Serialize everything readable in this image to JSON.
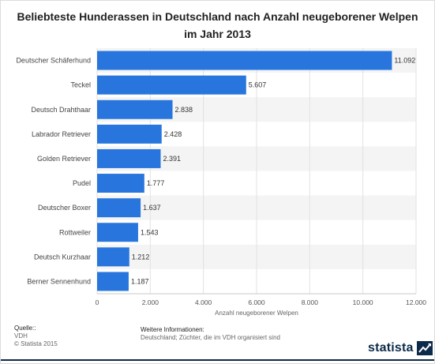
{
  "title": "Beliebteste Hunderassen in Deutschland nach Anzahl neugeborener Welpen im Jahr 2013",
  "chart_data": {
    "type": "bar",
    "orientation": "horizontal",
    "title": "Beliebteste Hunderassen in Deutschland nach Anzahl neugeborener Welpen im Jahr 2013",
    "categories": [
      "Deutscher Schäferhund",
      "Teckel",
      "Deutsch Drahthaar",
      "Labrador Retriever",
      "Golden Retriever",
      "Pudel",
      "Deutscher Boxer",
      "Rottweiler",
      "Deutsch Kurzhaar",
      "Berner Sennenhund"
    ],
    "values": [
      11092,
      5607,
      2838,
      2428,
      2391,
      1777,
      1637,
      1543,
      1212,
      1187
    ],
    "value_labels": [
      "11.092",
      "5.607",
      "2.838",
      "2.428",
      "2.391",
      "1.777",
      "1.637",
      "1.543",
      "1.212",
      "1.187"
    ],
    "xlabel": "Anzahl neugeborener Welpen",
    "xlim": [
      0,
      12000
    ],
    "xticks": [
      0,
      2000,
      4000,
      6000,
      8000,
      10000,
      12000
    ],
    "xtick_labels": [
      "0",
      "2.000",
      "4.000",
      "6.000",
      "8.000",
      "10.000",
      "12.000"
    ],
    "grid": true,
    "bar_color": "#2876dd"
  },
  "footer": {
    "source_head": "Quelle::",
    "source_lines": [
      "VDH",
      "© Statista 2015"
    ],
    "info_head": "Weitere Informationen:",
    "info_text": "Deutschland; Züchter, die im VDH organisiert sind"
  },
  "brand": {
    "name": "statista",
    "icon": "statista-arrow-icon"
  }
}
